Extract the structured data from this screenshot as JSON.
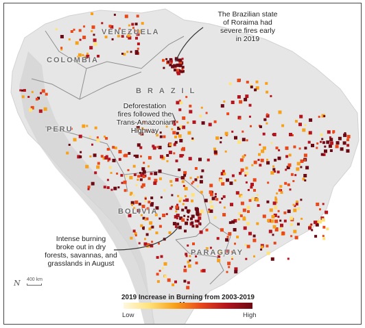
{
  "countries": {
    "venezuela": "VENEZUELA",
    "colombia": "COLOMBIA",
    "brazil": "BRAZIL",
    "peru": "PERU",
    "bolivia": "BOLIVIA",
    "paraguay": "PARAGUAY"
  },
  "annotations": {
    "roraima": [
      "The Brazilian state",
      "of Roraima had",
      "severe fires early",
      "in 2019"
    ],
    "deforestation": [
      "Deforestation",
      "fires followed the",
      "Trans-Amazonian",
      "Highway"
    ],
    "intense": [
      "Intense burning",
      "broke out in dry",
      "forests, savannas, and",
      "grasslands in August"
    ]
  },
  "legend": {
    "title": "2019 Increase in Burning from 2003-2019 Mean",
    "low": "Low",
    "high": "High",
    "colors": [
      "#fff8e0",
      "#ffe27a",
      "#f7a11a",
      "#e8481a",
      "#b3141e",
      "#6b0a14"
    ]
  },
  "scale": {
    "label": "400 km"
  },
  "north_symbol": "N"
}
